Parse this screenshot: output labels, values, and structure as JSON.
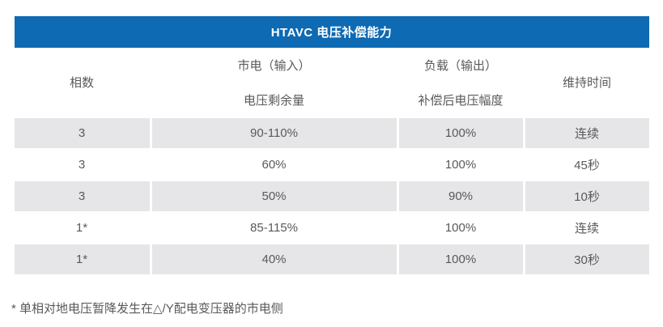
{
  "title": "HTAVC 电压补偿能力",
  "table": {
    "columns": [
      {
        "lines": [
          "相数"
        ]
      },
      {
        "lines": [
          "市电（输入）",
          "电压剩余量"
        ]
      },
      {
        "lines": [
          "负载（输出）",
          "补偿后电压幅度"
        ]
      },
      {
        "lines": [
          "维持时间"
        ]
      }
    ],
    "rows": [
      [
        "3",
        "90-110%",
        "100%",
        "连续"
      ],
      [
        "3",
        "60%",
        "100%",
        "45秒"
      ],
      [
        "3",
        "50%",
        "90%",
        "10秒"
      ],
      [
        "1*",
        "85-115%",
        "100%",
        "连续"
      ],
      [
        "1*",
        "40%",
        "100%",
        "30秒"
      ]
    ]
  },
  "footnote": "* 单相对地电压暂降发生在△/Y配电变压器的市电侧",
  "colors": {
    "header_bg": "#0e6ab3",
    "stripe_bg": "#e6e6e8",
    "text": "#59595b",
    "title_text": "#ffffff"
  }
}
